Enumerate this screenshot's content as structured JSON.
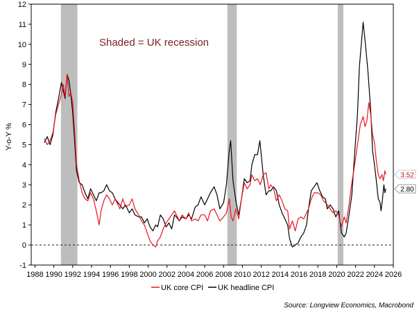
{
  "chart_data": {
    "type": "line",
    "title": "",
    "ylabel": "Y-o-Y %",
    "xlabel": "",
    "xlim": [
      1987.6,
      2026
    ],
    "ylim": [
      -1,
      12
    ],
    "xticks": [
      1988,
      1990,
      1992,
      1994,
      1996,
      1998,
      2000,
      2002,
      2004,
      2006,
      2008,
      2010,
      2012,
      2014,
      2016,
      2018,
      2020,
      2022,
      2024,
      2026
    ],
    "yticks": [
      -1,
      0,
      1,
      2,
      3,
      4,
      5,
      6,
      7,
      8,
      9,
      10,
      11,
      12
    ],
    "reference_line": {
      "y": 0,
      "style": "dashed"
    },
    "shaded_regions": [
      [
        1990.75,
        1992.5
      ],
      [
        2008.4,
        2009.4
      ],
      [
        2020.1,
        2020.7
      ]
    ],
    "annotation": "Shaded = UK recession",
    "series": [
      {
        "name": "UK core CPI",
        "color": "#e8141e",
        "end_label": "3.52",
        "points": [
          [
            1989.0,
            5.3
          ],
          [
            1989.3,
            5.0
          ],
          [
            1989.6,
            5.2
          ],
          [
            1989.9,
            5.6
          ],
          [
            1990.2,
            6.5
          ],
          [
            1990.5,
            7.0
          ],
          [
            1990.8,
            7.5
          ],
          [
            1991.0,
            8.0
          ],
          [
            1991.2,
            7.4
          ],
          [
            1991.4,
            8.5
          ],
          [
            1991.6,
            7.4
          ],
          [
            1991.8,
            7.6
          ],
          [
            1992.0,
            7.1
          ],
          [
            1992.2,
            5.7
          ],
          [
            1992.4,
            4.0
          ],
          [
            1992.7,
            3.2
          ],
          [
            1993.0,
            2.6
          ],
          [
            1993.3,
            2.3
          ],
          [
            1993.6,
            2.2
          ],
          [
            1993.9,
            2.6
          ],
          [
            1994.2,
            2.3
          ],
          [
            1994.5,
            1.7
          ],
          [
            1994.8,
            1.0
          ],
          [
            1995.0,
            1.7
          ],
          [
            1995.3,
            2.2
          ],
          [
            1995.6,
            2.5
          ],
          [
            1995.9,
            2.3
          ],
          [
            1996.2,
            2.0
          ],
          [
            1996.5,
            2.3
          ],
          [
            1996.8,
            2.0
          ],
          [
            1997.0,
            1.8
          ],
          [
            1997.3,
            2.3
          ],
          [
            1997.6,
            1.9
          ],
          [
            1998.0,
            2.0
          ],
          [
            1998.3,
            2.3
          ],
          [
            1998.6,
            1.8
          ],
          [
            1999.0,
            1.5
          ],
          [
            1999.3,
            1.2
          ],
          [
            1999.6,
            1.0
          ],
          [
            1999.9,
            0.6
          ],
          [
            2000.2,
            0.2
          ],
          [
            2000.5,
            0.0
          ],
          [
            2000.8,
            -0.1
          ],
          [
            2001.0,
            0.2
          ],
          [
            2001.3,
            0.4
          ],
          [
            2001.6,
            0.8
          ],
          [
            2001.9,
            1.1
          ],
          [
            2002.2,
            1.3
          ],
          [
            2002.5,
            1.5
          ],
          [
            2002.8,
            1.7
          ],
          [
            2003.0,
            1.5
          ],
          [
            2003.3,
            1.2
          ],
          [
            2003.6,
            1.5
          ],
          [
            2004.0,
            1.3
          ],
          [
            2004.3,
            1.6
          ],
          [
            2004.6,
            1.2
          ],
          [
            2005.0,
            1.3
          ],
          [
            2005.3,
            1.2
          ],
          [
            2005.6,
            1.5
          ],
          [
            2006.0,
            1.5
          ],
          [
            2006.3,
            1.2
          ],
          [
            2006.6,
            1.7
          ],
          [
            2007.0,
            1.8
          ],
          [
            2007.3,
            1.5
          ],
          [
            2007.6,
            1.2
          ],
          [
            2008.0,
            1.4
          ],
          [
            2008.3,
            1.6
          ],
          [
            2008.6,
            2.3
          ],
          [
            2008.8,
            1.4
          ],
          [
            2009.0,
            1.2
          ],
          [
            2009.3,
            1.8
          ],
          [
            2009.6,
            1.3
          ],
          [
            2009.9,
            2.3
          ],
          [
            2010.2,
            3.1
          ],
          [
            2010.5,
            2.8
          ],
          [
            2010.8,
            3.0
          ],
          [
            2011.0,
            3.5
          ],
          [
            2011.3,
            3.2
          ],
          [
            2011.6,
            3.3
          ],
          [
            2011.9,
            3.0
          ],
          [
            2012.2,
            3.5
          ],
          [
            2012.5,
            3.6
          ],
          [
            2012.8,
            2.8
          ],
          [
            2013.0,
            3.0
          ],
          [
            2013.3,
            2.8
          ],
          [
            2013.6,
            2.2
          ],
          [
            2013.9,
            2.5
          ],
          [
            2014.2,
            2.2
          ],
          [
            2014.5,
            1.8
          ],
          [
            2014.8,
            1.7
          ],
          [
            2015.0,
            0.8
          ],
          [
            2015.3,
            1.2
          ],
          [
            2015.6,
            0.7
          ],
          [
            2015.9,
            1.3
          ],
          [
            2016.2,
            1.4
          ],
          [
            2016.5,
            1.3
          ],
          [
            2016.8,
            1.6
          ],
          [
            2017.0,
            1.8
          ],
          [
            2017.3,
            2.3
          ],
          [
            2017.6,
            2.6
          ],
          [
            2018.0,
            2.6
          ],
          [
            2018.3,
            2.5
          ],
          [
            2018.6,
            2.2
          ],
          [
            2019.0,
            2.0
          ],
          [
            2019.3,
            1.8
          ],
          [
            2019.6,
            1.6
          ],
          [
            2019.9,
            1.7
          ],
          [
            2020.2,
            1.5
          ],
          [
            2020.5,
            0.9
          ],
          [
            2020.8,
            1.4
          ],
          [
            2021.0,
            1.1
          ],
          [
            2021.3,
            2.0
          ],
          [
            2021.6,
            3.1
          ],
          [
            2021.9,
            4.0
          ],
          [
            2022.2,
            5.0
          ],
          [
            2022.5,
            6.0
          ],
          [
            2022.8,
            6.4
          ],
          [
            2023.0,
            5.9
          ],
          [
            2023.2,
            6.2
          ],
          [
            2023.4,
            7.1
          ],
          [
            2023.6,
            6.5
          ],
          [
            2023.8,
            5.5
          ],
          [
            2024.0,
            5.1
          ],
          [
            2024.2,
            4.2
          ],
          [
            2024.4,
            3.5
          ],
          [
            2024.6,
            3.3
          ],
          [
            2024.8,
            3.5
          ],
          [
            2024.95,
            3.2
          ],
          [
            2025.1,
            3.7
          ],
          [
            2025.2,
            3.52
          ]
        ]
      },
      {
        "name": "UK headline CPI",
        "color": "#000000",
        "end_label": "2.80",
        "points": [
          [
            1989.0,
            5.1
          ],
          [
            1989.3,
            5.4
          ],
          [
            1989.6,
            5.0
          ],
          [
            1989.9,
            5.5
          ],
          [
            1990.2,
            6.6
          ],
          [
            1990.5,
            7.3
          ],
          [
            1990.8,
            8.1
          ],
          [
            1991.0,
            7.7
          ],
          [
            1991.2,
            7.3
          ],
          [
            1991.4,
            8.5
          ],
          [
            1991.6,
            8.2
          ],
          [
            1991.8,
            7.5
          ],
          [
            1992.0,
            6.6
          ],
          [
            1992.2,
            5.2
          ],
          [
            1992.4,
            3.7
          ],
          [
            1992.7,
            3.1
          ],
          [
            1993.0,
            3.0
          ],
          [
            1993.3,
            2.6
          ],
          [
            1993.6,
            2.3
          ],
          [
            1993.9,
            2.8
          ],
          [
            1994.2,
            2.5
          ],
          [
            1994.5,
            2.2
          ],
          [
            1994.8,
            2.6
          ],
          [
            1995.0,
            2.6
          ],
          [
            1995.3,
            2.7
          ],
          [
            1995.6,
            3.0
          ],
          [
            1995.9,
            2.7
          ],
          [
            1996.2,
            2.6
          ],
          [
            1996.5,
            2.3
          ],
          [
            1996.8,
            2.1
          ],
          [
            1997.0,
            2.0
          ],
          [
            1997.3,
            1.8
          ],
          [
            1997.6,
            2.0
          ],
          [
            1998.0,
            1.6
          ],
          [
            1998.3,
            1.8
          ],
          [
            1998.6,
            1.5
          ],
          [
            1999.0,
            1.4
          ],
          [
            1999.3,
            1.4
          ],
          [
            1999.6,
            1.1
          ],
          [
            1999.9,
            1.3
          ],
          [
            2000.2,
            0.9
          ],
          [
            2000.5,
            0.7
          ],
          [
            2000.8,
            1.0
          ],
          [
            2001.0,
            0.9
          ],
          [
            2001.3,
            1.5
          ],
          [
            2001.6,
            1.3
          ],
          [
            2001.9,
            0.9
          ],
          [
            2002.2,
            1.1
          ],
          [
            2002.5,
            0.8
          ],
          [
            2002.8,
            1.5
          ],
          [
            2003.0,
            1.4
          ],
          [
            2003.3,
            1.2
          ],
          [
            2003.6,
            1.4
          ],
          [
            2004.0,
            1.3
          ],
          [
            2004.3,
            1.5
          ],
          [
            2004.6,
            1.3
          ],
          [
            2005.0,
            1.9
          ],
          [
            2005.3,
            2.0
          ],
          [
            2005.6,
            2.4
          ],
          [
            2006.0,
            2.0
          ],
          [
            2006.3,
            2.3
          ],
          [
            2006.6,
            2.6
          ],
          [
            2007.0,
            2.9
          ],
          [
            2007.3,
            2.5
          ],
          [
            2007.6,
            1.8
          ],
          [
            2008.0,
            2.1
          ],
          [
            2008.3,
            3.0
          ],
          [
            2008.6,
            4.7
          ],
          [
            2008.75,
            5.2
          ],
          [
            2009.0,
            3.2
          ],
          [
            2009.3,
            2.2
          ],
          [
            2009.6,
            1.5
          ],
          [
            2009.9,
            2.3
          ],
          [
            2010.2,
            3.3
          ],
          [
            2010.5,
            3.1
          ],
          [
            2010.8,
            3.2
          ],
          [
            2011.0,
            4.0
          ],
          [
            2011.3,
            4.5
          ],
          [
            2011.6,
            4.5
          ],
          [
            2011.85,
            5.2
          ],
          [
            2012.2,
            3.5
          ],
          [
            2012.5,
            2.5
          ],
          [
            2012.8,
            2.7
          ],
          [
            2013.0,
            2.7
          ],
          [
            2013.3,
            2.9
          ],
          [
            2013.6,
            2.7
          ],
          [
            2013.9,
            2.0
          ],
          [
            2014.2,
            1.6
          ],
          [
            2014.5,
            1.3
          ],
          [
            2014.8,
            1.0
          ],
          [
            2015.0,
            0.3
          ],
          [
            2015.3,
            -0.1
          ],
          [
            2015.6,
            0.0
          ],
          [
            2015.9,
            0.1
          ],
          [
            2016.2,
            0.4
          ],
          [
            2016.5,
            0.6
          ],
          [
            2016.8,
            1.0
          ],
          [
            2017.0,
            1.8
          ],
          [
            2017.3,
            2.7
          ],
          [
            2017.6,
            2.9
          ],
          [
            2017.9,
            3.1
          ],
          [
            2018.2,
            2.7
          ],
          [
            2018.5,
            2.4
          ],
          [
            2018.8,
            2.3
          ],
          [
            2019.0,
            1.8
          ],
          [
            2019.3,
            2.0
          ],
          [
            2019.6,
            1.8
          ],
          [
            2019.9,
            1.4
          ],
          [
            2020.2,
            1.7
          ],
          [
            2020.5,
            0.6
          ],
          [
            2020.8,
            0.4
          ],
          [
            2021.0,
            0.6
          ],
          [
            2021.3,
            1.5
          ],
          [
            2021.6,
            2.5
          ],
          [
            2021.9,
            4.6
          ],
          [
            2022.2,
            6.5
          ],
          [
            2022.4,
            8.9
          ],
          [
            2022.6,
            10.0
          ],
          [
            2022.8,
            11.1
          ],
          [
            2023.0,
            10.2
          ],
          [
            2023.3,
            8.7
          ],
          [
            2023.6,
            6.7
          ],
          [
            2023.8,
            4.7
          ],
          [
            2024.0,
            4.0
          ],
          [
            2024.2,
            3.2
          ],
          [
            2024.4,
            2.3
          ],
          [
            2024.6,
            2.1
          ],
          [
            2024.7,
            1.7
          ],
          [
            2024.85,
            2.3
          ],
          [
            2025.0,
            3.0
          ],
          [
            2025.1,
            2.6
          ],
          [
            2025.2,
            2.8
          ]
        ]
      }
    ],
    "legend": [
      "UK core CPI",
      "UK headline CPI"
    ],
    "legend_position": "bottom-center",
    "source": "Source: Longview Economics, Macrobond"
  }
}
